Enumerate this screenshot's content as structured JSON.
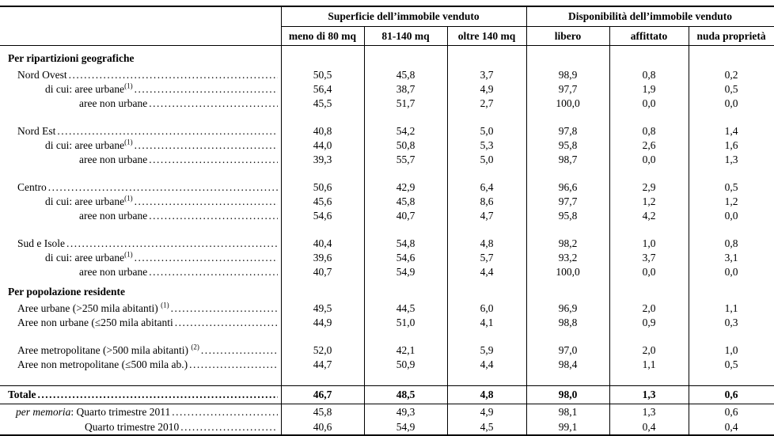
{
  "table": {
    "column_groups": [
      {
        "label": "Superficie dell’immobile venduto",
        "span": 3
      },
      {
        "label": "Disponibilità dell’immobile venduto",
        "span": 3
      }
    ],
    "columns": [
      "meno di 80 mq",
      "81-140 mq",
      "oltre 140 mq",
      "libero",
      "affittato",
      "nuda proprietà"
    ],
    "rows": [
      {
        "type": "section",
        "label": "Per ripartizioni geografiche"
      },
      {
        "type": "data",
        "indent": 1,
        "label": "Nord Ovest",
        "values": [
          "50,5",
          "45,8",
          "3,7",
          "98,9",
          "0,8",
          "0,2"
        ]
      },
      {
        "type": "data",
        "indent": 2,
        "label": "di cui: aree urbane",
        "sup": "(1)",
        "values": [
          "56,4",
          "38,7",
          "4,9",
          "97,7",
          "1,9",
          "0,5"
        ]
      },
      {
        "type": "data",
        "indent": 3,
        "label": "aree non urbane",
        "values": [
          "45,5",
          "51,7",
          "2,7",
          "100,0",
          "0,0",
          "0,0"
        ]
      },
      {
        "type": "spacer"
      },
      {
        "type": "data",
        "indent": 1,
        "label": "Nord Est",
        "values": [
          "40,8",
          "54,2",
          "5,0",
          "97,8",
          "0,8",
          "1,4"
        ]
      },
      {
        "type": "data",
        "indent": 2,
        "label": "di cui: aree urbane",
        "sup": "(1)",
        "values": [
          "44,0",
          "50,8",
          "5,3",
          "95,8",
          "2,6",
          "1,6"
        ]
      },
      {
        "type": "data",
        "indent": 3,
        "label": "aree non urbane",
        "values": [
          "39,3",
          "55,7",
          "5,0",
          "98,7",
          "0,0",
          "1,3"
        ]
      },
      {
        "type": "spacer"
      },
      {
        "type": "data",
        "indent": 1,
        "label": "Centro",
        "values": [
          "50,6",
          "42,9",
          "6,4",
          "96,6",
          "2,9",
          "0,5"
        ]
      },
      {
        "type": "data",
        "indent": 2,
        "label": "di cui: aree urbane",
        "sup": "(1)",
        "values": [
          "45,6",
          "45,8",
          "8,6",
          "97,7",
          "1,2",
          "1,2"
        ]
      },
      {
        "type": "data",
        "indent": 3,
        "label": "aree non urbane",
        "values": [
          "54,6",
          "40,7",
          "4,7",
          "95,8",
          "4,2",
          "0,0"
        ]
      },
      {
        "type": "spacer"
      },
      {
        "type": "data",
        "indent": 1,
        "label": "Sud e Isole",
        "values": [
          "40,4",
          "54,8",
          "4,8",
          "98,2",
          "1,0",
          "0,8"
        ]
      },
      {
        "type": "data",
        "indent": 2,
        "label": "di cui: aree urbane",
        "sup": "(1)",
        "values": [
          "39,6",
          "54,6",
          "5,7",
          "93,2",
          "3,7",
          "3,1"
        ]
      },
      {
        "type": "data",
        "indent": 3,
        "label": "aree non urbane",
        "values": [
          "40,7",
          "54,9",
          "4,4",
          "100,0",
          "0,0",
          "0,0"
        ]
      },
      {
        "type": "section",
        "label": "Per popolazione residente"
      },
      {
        "type": "data",
        "indent": 1,
        "label": "Aree urbane (>250 mila abitanti) ",
        "sup": "(1)",
        "values": [
          "49,5",
          "44,5",
          "6,0",
          "96,9",
          "2,0",
          "1,1"
        ]
      },
      {
        "type": "data",
        "indent": 1,
        "label": "Aree non urbane (≤250 mila abitanti",
        "values": [
          "44,9",
          "51,0",
          "4,1",
          "98,8",
          "0,9",
          "0,3"
        ]
      },
      {
        "type": "spacer"
      },
      {
        "type": "data",
        "indent": 1,
        "label": "Aree metropolitane (>500 mila abitanti) ",
        "sup": "(2)",
        "values": [
          "52,0",
          "42,1",
          "5,9",
          "97,0",
          "2,0",
          "1,0"
        ]
      },
      {
        "type": "data",
        "indent": 1,
        "label": "Aree non metropolitane (≤500 mila ab.)",
        "values": [
          "44,7",
          "50,9",
          "4,4",
          "98,4",
          "1,1",
          "0,5"
        ]
      },
      {
        "type": "spacer_small"
      },
      {
        "type": "total",
        "label": "Totale",
        "values": [
          "46,7",
          "48,5",
          "4,8",
          "98,0",
          "1,3",
          "0,6"
        ]
      },
      {
        "type": "memo",
        "italic_prefix": "per memoria",
        "label": ": Quarto trimestre 2011 ",
        "values": [
          "45,8",
          "49,3",
          "4,9",
          "98,1",
          "1,3",
          "0,6"
        ]
      },
      {
        "type": "memo",
        "indent": 4,
        "label": "Quarto trimestre 2010",
        "values": [
          "40,6",
          "54,9",
          "4,5",
          "99,1",
          "0,4",
          "0,4"
        ]
      }
    ]
  }
}
